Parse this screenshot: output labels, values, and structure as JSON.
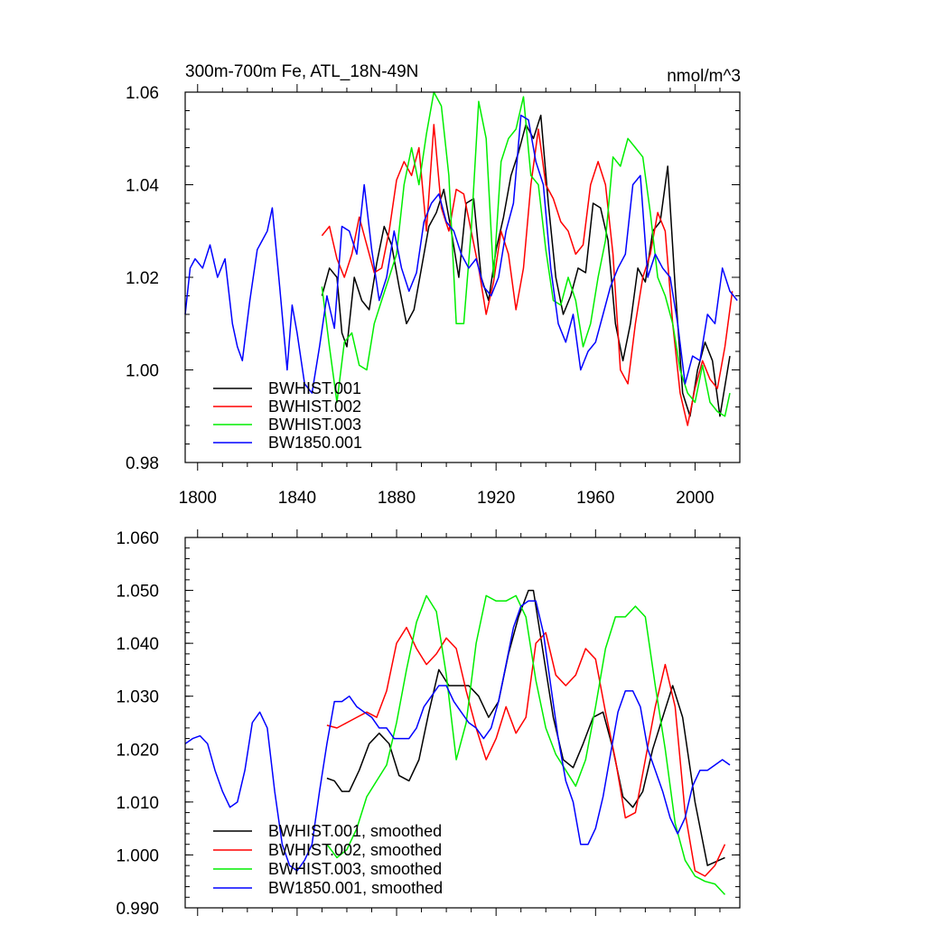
{
  "chart_data": [
    {
      "type": "line",
      "title_left": "300m-700m Fe, ATL_18N-49N",
      "title_right": "nmol/m^3",
      "xlabel": "",
      "ylabel": "",
      "xlim": [
        1795,
        2018
      ],
      "ylim": [
        0.98,
        1.06
      ],
      "x_ticks": [
        1800,
        1840,
        1880,
        1920,
        1960,
        2000
      ],
      "x_tick_labels": [
        "1800",
        "1840",
        "1880",
        "1920",
        "1960",
        "2000"
      ],
      "y_ticks": [
        0.98,
        1.0,
        1.02,
        1.04,
        1.06
      ],
      "y_tick_labels": [
        "0.98",
        "1.00",
        "1.02",
        "1.04",
        "1.06"
      ],
      "legend_position": "bottom-left",
      "series": [
        {
          "name": "BWHIST.001",
          "color": "#000000",
          "x": [
            1850,
            1853,
            1856,
            1858,
            1860,
            1863,
            1866,
            1869,
            1872,
            1875,
            1878,
            1881,
            1884,
            1887,
            1890,
            1893,
            1896,
            1899,
            1902,
            1905,
            1908,
            1911,
            1914,
            1917,
            1920,
            1923,
            1926,
            1929,
            1932,
            1935,
            1938,
            1941,
            1944,
            1947,
            1950,
            1953,
            1956,
            1959,
            1962,
            1965,
            1968,
            1971,
            1974,
            1977,
            1980,
            1983,
            1986,
            1989,
            1992,
            1995,
            1998,
            2001,
            2004,
            2007,
            2010,
            2014
          ],
          "y": [
            1.016,
            1.022,
            1.02,
            1.008,
            1.005,
            1.02,
            1.015,
            1.013,
            1.023,
            1.031,
            1.027,
            1.018,
            1.01,
            1.013,
            1.022,
            1.031,
            1.034,
            1.039,
            1.03,
            1.02,
            1.036,
            1.037,
            1.02,
            1.015,
            1.026,
            1.033,
            1.042,
            1.047,
            1.053,
            1.05,
            1.055,
            1.036,
            1.02,
            1.012,
            1.016,
            1.022,
            1.021,
            1.036,
            1.035,
            1.028,
            1.01,
            1.002,
            1.01,
            1.022,
            1.019,
            1.03,
            1.032,
            1.044,
            1.018,
            0.995,
            0.99,
            1.0,
            1.006,
            1.002,
            0.99,
            1.003
          ]
        },
        {
          "name": "BWHIST.002",
          "color": "#ff0000",
          "x": [
            1850,
            1853,
            1856,
            1859,
            1862,
            1865,
            1868,
            1871,
            1874,
            1877,
            1880,
            1883,
            1886,
            1889,
            1892,
            1895,
            1898,
            1901,
            1904,
            1907,
            1910,
            1913,
            1916,
            1919,
            1922,
            1925,
            1928,
            1931,
            1934,
            1937,
            1940,
            1943,
            1946,
            1949,
            1952,
            1955,
            1958,
            1961,
            1964,
            1967,
            1970,
            1973,
            1976,
            1979,
            1982,
            1985,
            1988,
            1991,
            1994,
            1997,
            2000,
            2003,
            2006,
            2009,
            2012,
            2015
          ],
          "y": [
            1.029,
            1.031,
            1.024,
            1.02,
            1.025,
            1.033,
            1.027,
            1.021,
            1.022,
            1.03,
            1.041,
            1.045,
            1.042,
            1.048,
            1.03,
            1.053,
            1.035,
            1.03,
            1.039,
            1.038,
            1.03,
            1.022,
            1.012,
            1.019,
            1.03,
            1.025,
            1.013,
            1.022,
            1.04,
            1.052,
            1.04,
            1.037,
            1.032,
            1.03,
            1.025,
            1.027,
            1.04,
            1.045,
            1.04,
            1.025,
            1.0,
            0.997,
            1.01,
            1.02,
            1.025,
            1.034,
            1.03,
            1.01,
            0.995,
            0.988,
            0.996,
            1.002,
            0.998,
            0.996,
            1.005,
            1.017
          ]
        },
        {
          "name": "BWHIST.003",
          "color": "#00ee00",
          "x": [
            1850,
            1853,
            1856,
            1859,
            1862,
            1865,
            1868,
            1871,
            1874,
            1877,
            1880,
            1883,
            1886,
            1889,
            1892,
            1895,
            1898,
            1901,
            1904,
            1907,
            1910,
            1913,
            1916,
            1919,
            1922,
            1925,
            1928,
            1931,
            1934,
            1937,
            1940,
            1943,
            1946,
            1949,
            1952,
            1955,
            1958,
            1961,
            1964,
            1967,
            1970,
            1973,
            1976,
            1979,
            1982,
            1985,
            1988,
            1991,
            1994,
            1997,
            2000,
            2003,
            2006,
            2009,
            2012,
            2014
          ],
          "y": [
            1.018,
            1.005,
            0.993,
            1.006,
            1.008,
            1.001,
            1.0,
            1.01,
            1.015,
            1.02,
            1.025,
            1.04,
            1.048,
            1.04,
            1.051,
            1.06,
            1.057,
            1.042,
            1.01,
            1.01,
            1.03,
            1.058,
            1.05,
            1.02,
            1.045,
            1.05,
            1.052,
            1.059,
            1.042,
            1.04,
            1.026,
            1.015,
            1.014,
            1.02,
            1.015,
            1.005,
            1.01,
            1.02,
            1.028,
            1.046,
            1.044,
            1.05,
            1.048,
            1.046,
            1.034,
            1.02,
            1.016,
            1.01,
            1.0,
            0.995,
            0.993,
            1.001,
            0.993,
            0.991,
            0.99,
            0.995
          ]
        },
        {
          "name": "BW1850.001",
          "color": "#0000ff",
          "x": [
            1795,
            1797,
            1799,
            1802,
            1805,
            1808,
            1811,
            1814,
            1816,
            1818,
            1821,
            1824,
            1826,
            1828,
            1830,
            1833,
            1836,
            1838,
            1840,
            1843,
            1846,
            1849,
            1852,
            1855,
            1858,
            1861,
            1864,
            1867,
            1870,
            1873,
            1876,
            1879,
            1882,
            1885,
            1888,
            1891,
            1894,
            1897,
            1900,
            1903,
            1906,
            1909,
            1912,
            1915,
            1918,
            1921,
            1924,
            1927,
            1930,
            1933,
            1936,
            1939,
            1942,
            1945,
            1948,
            1951,
            1954,
            1957,
            1960,
            1963,
            1966,
            1969,
            1972,
            1975,
            1978,
            1981,
            1984,
            1987,
            1990,
            1993,
            1996,
            1999,
            2002,
            2005,
            2008,
            2011,
            2014,
            2017
          ],
          "y": [
            1.012,
            1.022,
            1.024,
            1.022,
            1.027,
            1.02,
            1.024,
            1.01,
            1.005,
            1.002,
            1.015,
            1.026,
            1.028,
            1.03,
            1.035,
            1.018,
            1.0,
            1.014,
            1.008,
            0.997,
            0.995,
            1.005,
            1.016,
            1.009,
            1.031,
            1.03,
            1.025,
            1.04,
            1.026,
            1.015,
            1.02,
            1.03,
            1.022,
            1.017,
            1.021,
            1.032,
            1.036,
            1.038,
            1.032,
            1.03,
            1.025,
            1.022,
            1.024,
            1.018,
            1.016,
            1.02,
            1.03,
            1.036,
            1.055,
            1.054,
            1.045,
            1.04,
            1.022,
            1.01,
            1.006,
            1.012,
            1.0,
            1.004,
            1.006,
            1.012,
            1.018,
            1.022,
            1.025,
            1.04,
            1.042,
            1.02,
            1.025,
            1.022,
            1.02,
            1.01,
            0.997,
            1.003,
            1.002,
            1.012,
            1.01,
            1.022,
            1.017,
            1.015
          ]
        }
      ]
    },
    {
      "type": "line",
      "xlabel": "",
      "ylabel": "",
      "xlim": [
        1795,
        2018
      ],
      "ylim": [
        0.99,
        1.06
      ],
      "x_ticks": [
        1800,
        1840,
        1880,
        1920,
        1960,
        2000
      ],
      "y_ticks": [
        0.99,
        1.0,
        1.01,
        1.02,
        1.03,
        1.04,
        1.05,
        1.06
      ],
      "y_tick_labels": [
        "0.990",
        "1.000",
        "1.010",
        "1.020",
        "1.030",
        "1.040",
        "1.050",
        "1.060"
      ],
      "legend_position": "bottom-left",
      "series": [
        {
          "name": "BWHIST.001, smoothed",
          "color": "#000000",
          "x": [
            1852,
            1855,
            1858,
            1861,
            1865,
            1869,
            1873,
            1877,
            1881,
            1885,
            1889,
            1893,
            1897,
            1901,
            1905,
            1909,
            1913,
            1917,
            1921,
            1925,
            1929,
            1933,
            1935,
            1939,
            1943,
            1947,
            1951,
            1955,
            1959,
            1963,
            1967,
            1971,
            1975,
            1979,
            1983,
            1987,
            1991,
            1995,
            2000,
            2005,
            2012
          ],
          "y": [
            1.0145,
            1.014,
            1.012,
            1.012,
            1.016,
            1.021,
            1.023,
            1.021,
            1.015,
            1.014,
            1.018,
            1.027,
            1.035,
            1.032,
            1.032,
            1.032,
            1.03,
            1.026,
            1.029,
            1.038,
            1.045,
            1.05,
            1.05,
            1.038,
            1.026,
            1.018,
            1.0165,
            1.021,
            1.026,
            1.027,
            1.02,
            1.011,
            1.009,
            1.012,
            1.02,
            1.026,
            1.032,
            1.026,
            1.01,
            0.998,
            0.9995
          ]
        },
        {
          "name": "BWHIST.002, smoothed",
          "color": "#ff0000",
          "x": [
            1852,
            1856,
            1860,
            1864,
            1868,
            1872,
            1876,
            1880,
            1884,
            1888,
            1892,
            1896,
            1900,
            1904,
            1908,
            1912,
            1916,
            1920,
            1924,
            1928,
            1932,
            1936,
            1940,
            1944,
            1948,
            1952,
            1956,
            1960,
            1964,
            1968,
            1972,
            1976,
            1980,
            1984,
            1988,
            1992,
            1996,
            2000,
            2004,
            2008,
            2012
          ],
          "y": [
            1.0245,
            1.024,
            1.025,
            1.026,
            1.027,
            1.026,
            1.031,
            1.04,
            1.043,
            1.039,
            1.036,
            1.038,
            1.041,
            1.039,
            1.031,
            1.024,
            1.018,
            1.022,
            1.028,
            1.023,
            1.026,
            1.04,
            1.042,
            1.034,
            1.032,
            1.034,
            1.039,
            1.037,
            1.027,
            1.018,
            1.007,
            1.008,
            1.018,
            1.028,
            1.036,
            1.028,
            1.008,
            0.997,
            0.996,
            0.998,
            1.002
          ]
        },
        {
          "name": "BWHIST.003, smoothed",
          "color": "#00ee00",
          "x": [
            1852,
            1856,
            1860,
            1864,
            1868,
            1872,
            1876,
            1880,
            1884,
            1888,
            1892,
            1896,
            1900,
            1904,
            1908,
            1912,
            1916,
            1920,
            1924,
            1928,
            1932,
            1936,
            1940,
            1944,
            1948,
            1952,
            1956,
            1960,
            1964,
            1968,
            1972,
            1976,
            1980,
            1984,
            1988,
            1992,
            1996,
            2000,
            2004,
            2008,
            2012
          ],
          "y": [
            1.002,
            0.9995,
            1.001,
            1.005,
            1.011,
            1.014,
            1.017,
            1.025,
            1.035,
            1.044,
            1.049,
            1.046,
            1.034,
            1.018,
            1.025,
            1.04,
            1.049,
            1.048,
            1.048,
            1.049,
            1.045,
            1.033,
            1.024,
            1.019,
            1.016,
            1.013,
            1.018,
            1.028,
            1.039,
            1.045,
            1.045,
            1.047,
            1.045,
            1.032,
            1.02,
            1.006,
            0.999,
            0.996,
            0.995,
            0.9945,
            0.9925
          ]
        },
        {
          "name": "BW1850.001, smoothed",
          "color": "#0000ff",
          "x": [
            1795,
            1798,
            1801,
            1804,
            1807,
            1810,
            1813,
            1816,
            1819,
            1822,
            1825,
            1828,
            1831,
            1834,
            1837,
            1840,
            1843,
            1846,
            1849,
            1852,
            1855,
            1858,
            1861,
            1864,
            1867,
            1870,
            1873,
            1876,
            1879,
            1882,
            1885,
            1888,
            1891,
            1894,
            1897,
            1900,
            1903,
            1906,
            1909,
            1912,
            1915,
            1918,
            1921,
            1924,
            1927,
            1930,
            1933,
            1936,
            1939,
            1942,
            1945,
            1948,
            1951,
            1954,
            1957,
            1960,
            1963,
            1966,
            1969,
            1972,
            1975,
            1978,
            1981,
            1984,
            1987,
            1990,
            1993,
            1996,
            1999,
            2002,
            2005,
            2008,
            2011,
            2014
          ],
          "y": [
            1.021,
            1.022,
            1.0225,
            1.021,
            1.016,
            1.012,
            1.009,
            1.01,
            1.016,
            1.025,
            1.027,
            1.024,
            1.012,
            1.002,
            0.998,
            0.997,
            0.999,
            1.002,
            1.012,
            1.021,
            1.029,
            1.029,
            1.03,
            1.028,
            1.027,
            1.026,
            1.024,
            1.024,
            1.022,
            1.022,
            1.022,
            1.024,
            1.028,
            1.03,
            1.032,
            1.032,
            1.029,
            1.027,
            1.025,
            1.024,
            1.022,
            1.024,
            1.029,
            1.036,
            1.043,
            1.047,
            1.048,
            1.048,
            1.042,
            1.032,
            1.022,
            1.014,
            1.01,
            1.002,
            1.002,
            1.005,
            1.011,
            1.019,
            1.027,
            1.031,
            1.031,
            1.028,
            1.02,
            1.016,
            1.012,
            1.007,
            1.004,
            1.007,
            1.013,
            1.016,
            1.016,
            1.017,
            1.018,
            1.017
          ]
        }
      ]
    }
  ]
}
